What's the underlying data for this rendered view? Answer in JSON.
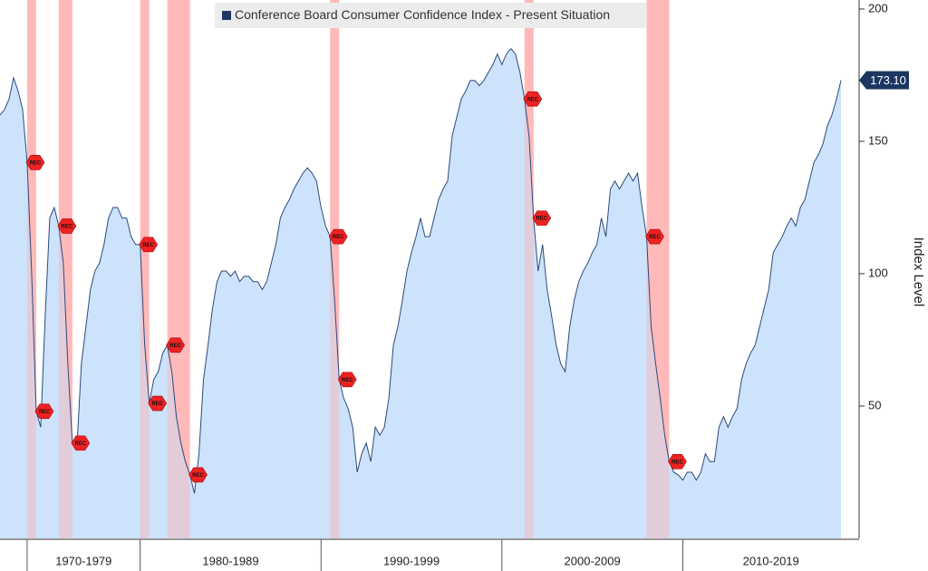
{
  "chart_data": {
    "type": "area",
    "y_axis_label": "Index Level",
    "ylim": [
      0,
      203.4
    ],
    "yticks": [
      50,
      100,
      150,
      200
    ],
    "grid": false,
    "decade_labels": [
      "1970-1979",
      "1980-1989",
      "1990-1999",
      "2000-2009",
      "2010-2019"
    ],
    "recession_label": "REC",
    "recession_color": "#ffb3b3",
    "recessions": [
      {
        "start": "1970-01",
        "end": "1971-01"
      },
      {
        "start": "1973-07",
        "end": "1975-01"
      },
      {
        "start": "1980-01",
        "end": "1980-07"
      },
      {
        "start": "1981-07",
        "end": "1982-10"
      },
      {
        "start": "1990-07",
        "end": "1991-01"
      },
      {
        "start": "2001-04",
        "end": "2001-10"
      },
      {
        "start": "2008-01",
        "end": "2009-04"
      }
    ],
    "categories": [
      "1967-01",
      "1967-07",
      "1968-01",
      "1968-07",
      "1969-01",
      "1969-07",
      "1970-01",
      "1970-07",
      "1971-01",
      "1971-07",
      "1972-01",
      "1972-07",
      "1973-01",
      "1973-07",
      "1974-01",
      "1974-07",
      "1975-01",
      "1975-05",
      "1975-09",
      "1976-01",
      "1976-05",
      "1976-09",
      "1977-01",
      "1977-05",
      "1977-09",
      "1978-01",
      "1978-05",
      "1978-09",
      "1979-01",
      "1979-05",
      "1979-09",
      "1980-01",
      "1980-04",
      "1980-07",
      "1980-10",
      "1981-01",
      "1981-04",
      "1981-07",
      "1981-10",
      "1982-01",
      "1982-04",
      "1982-07",
      "1982-10",
      "1983-01",
      "1983-04",
      "1983-07",
      "1983-10",
      "1984-01",
      "1984-04",
      "1984-07",
      "1984-10",
      "1985-01",
      "1985-04",
      "1985-07",
      "1985-10",
      "1986-01",
      "1986-04",
      "1986-07",
      "1986-10",
      "1987-01",
      "1987-04",
      "1987-07",
      "1987-10",
      "1988-01",
      "1988-04",
      "1988-07",
      "1988-10",
      "1989-01",
      "1989-04",
      "1989-07",
      "1989-10",
      "1990-01",
      "1990-04",
      "1990-07",
      "1990-10",
      "1991-01",
      "1991-04",
      "1991-07",
      "1991-10",
      "1992-01",
      "1992-04",
      "1992-07",
      "1992-10",
      "1993-01",
      "1993-04",
      "1993-07",
      "1993-10",
      "1994-01",
      "1994-04",
      "1994-07",
      "1994-10",
      "1995-01",
      "1995-04",
      "1995-07",
      "1995-10",
      "1996-01",
      "1996-04",
      "1996-07",
      "1996-10",
      "1997-01",
      "1997-04",
      "1997-07",
      "1997-10",
      "1998-01",
      "1998-04",
      "1998-07",
      "1998-10",
      "1999-01",
      "1999-04",
      "1999-07",
      "1999-10",
      "2000-01",
      "2000-04",
      "2000-07",
      "2000-10",
      "2001-01",
      "2001-04",
      "2001-07",
      "2001-10",
      "2002-01",
      "2002-04",
      "2002-07",
      "2002-10",
      "2003-01",
      "2003-04",
      "2003-07",
      "2003-10",
      "2004-01",
      "2004-04",
      "2004-07",
      "2004-10",
      "2005-01",
      "2005-04",
      "2005-07",
      "2005-10",
      "2006-01",
      "2006-04",
      "2006-07",
      "2006-10",
      "2007-01",
      "2007-04",
      "2007-07",
      "2007-10",
      "2008-01",
      "2008-04",
      "2008-07",
      "2008-10",
      "2009-01",
      "2009-04",
      "2009-07",
      "2009-10",
      "2010-01",
      "2010-04",
      "2010-07",
      "2010-10",
      "2011-01",
      "2011-04",
      "2011-07",
      "2011-10",
      "2012-01",
      "2012-04",
      "2012-07",
      "2012-10",
      "2013-01",
      "2013-04",
      "2013-07",
      "2013-10",
      "2014-01",
      "2014-04",
      "2014-07",
      "2014-10",
      "2015-01",
      "2015-04",
      "2015-07",
      "2015-10",
      "2016-01",
      "2016-04",
      "2016-07",
      "2016-10",
      "2017-01",
      "2017-04",
      "2017-07",
      "2017-10",
      "2018-01",
      "2018-04",
      "2018-07",
      "2018-10"
    ],
    "series": [
      {
        "name": "Conference Board Consumer Confidence Index - Present Situation",
        "color": "#2b4a7e",
        "fill": "#c9e2fb",
        "legend_color": "#1f3864",
        "last_label": "173.10",
        "values": [
          160,
          162,
          166,
          174,
          169,
          162,
          142,
          100,
          48,
          42,
          84,
          121,
          125,
          118,
          104,
          66,
          36,
          34,
          66,
          80,
          94,
          101,
          104,
          111,
          121,
          125,
          125,
          121,
          121,
          114,
          111,
          111,
          73,
          51,
          60,
          63,
          70,
          73,
          63,
          46,
          36,
          29,
          24,
          17,
          32,
          60,
          73,
          87,
          97,
          101,
          101,
          99,
          101,
          97,
          99,
          99,
          97,
          97,
          94,
          97,
          104,
          111,
          121,
          125,
          128,
          132,
          135,
          138,
          140,
          138,
          135,
          125,
          118,
          114,
          90,
          60,
          53,
          49,
          42,
          25,
          32,
          36,
          29,
          42,
          39,
          42,
          53,
          73,
          80,
          90,
          101,
          108,
          114,
          121,
          114,
          114,
          121,
          128,
          132,
          135,
          152,
          159,
          166,
          169,
          173,
          173,
          171,
          173,
          176,
          179,
          183,
          179,
          183,
          185,
          183,
          176,
          166,
          152,
          121,
          101,
          111,
          94,
          84,
          73,
          66,
          63,
          80,
          90,
          97,
          101,
          104,
          108,
          111,
          121,
          114,
          132,
          135,
          132,
          135,
          138,
          135,
          138,
          125,
          114,
          80,
          66,
          53,
          39,
          29,
          25,
          24,
          22,
          25,
          25,
          22,
          25,
          32,
          29,
          29,
          42,
          46,
          42,
          46,
          49,
          60,
          66,
          70,
          73,
          80,
          87,
          94,
          108,
          111,
          114,
          118,
          121,
          118,
          125,
          128,
          135,
          142,
          145,
          149,
          156,
          160,
          166,
          173.1
        ]
      }
    ]
  }
}
